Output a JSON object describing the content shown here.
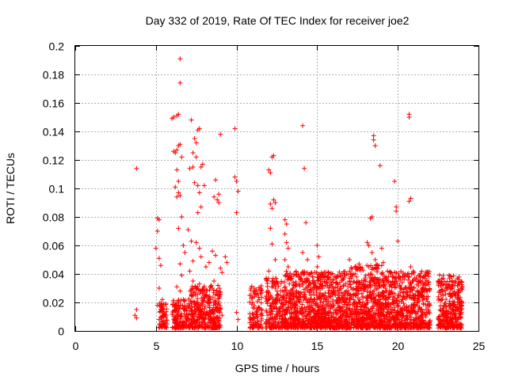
{
  "chart_data": {
    "type": "scatter",
    "title": "Day 332 of 2019, Rate Of TEC Index for receiver joe2",
    "xlabel": "GPS time / hours",
    "ylabel": "ROTI / TECUs",
    "xlim": [
      0,
      25
    ],
    "ylim": [
      0,
      0.2
    ],
    "xticks": [
      0,
      5,
      10,
      15,
      20,
      25
    ],
    "yticks": [
      0,
      0.02,
      0.04,
      0.06,
      0.08,
      0.1,
      0.12,
      0.14,
      0.16,
      0.18,
      0.2
    ],
    "xtick_labels": [
      "0",
      "5",
      "10",
      "15",
      "20",
      "25"
    ],
    "ytick_labels": [
      "0",
      "0.02",
      "0.04",
      "0.06",
      "0.08",
      "0.1",
      "0.12",
      "0.14",
      "0.16",
      "0.18",
      "0.2"
    ],
    "grid": true,
    "marker": "+",
    "color": "#ff0000",
    "series": [
      {
        "name": "ROTI",
        "points": [
          [
            3.8,
            0.114
          ],
          [
            3.8,
            0.015
          ],
          [
            3.8,
            0.009
          ],
          [
            3.7,
            0.011
          ],
          [
            5.1,
            0.079
          ],
          [
            5.2,
            0.078
          ],
          [
            5.1,
            0.07
          ],
          [
            5.0,
            0.058
          ],
          [
            5.2,
            0.051
          ],
          [
            5.3,
            0.046
          ],
          [
            5.2,
            0.03
          ],
          [
            5.4,
            0.022
          ],
          [
            5.1,
            0.018
          ],
          [
            5.3,
            0.015
          ],
          [
            5.5,
            0.012
          ],
          [
            5.2,
            0.008
          ],
          [
            5.4,
            0.004
          ],
          [
            5.6,
            0.006
          ],
          [
            6.0,
            0.149
          ],
          [
            6.1,
            0.15
          ],
          [
            6.2,
            0.125
          ],
          [
            6.1,
            0.126
          ],
          [
            6.3,
            0.127
          ],
          [
            6.4,
            0.13
          ],
          [
            6.5,
            0.131
          ],
          [
            6.3,
            0.151
          ],
          [
            6.4,
            0.152
          ],
          [
            6.5,
            0.191
          ],
          [
            6.5,
            0.174
          ],
          [
            6.6,
            0.122
          ],
          [
            6.3,
            0.113
          ],
          [
            6.4,
            0.105
          ],
          [
            6.2,
            0.101
          ],
          [
            6.4,
            0.097
          ],
          [
            6.5,
            0.095
          ],
          [
            6.3,
            0.094
          ],
          [
            6.6,
            0.08
          ],
          [
            6.4,
            0.072
          ],
          [
            6.7,
            0.06
          ],
          [
            6.8,
            0.055
          ],
          [
            6.5,
            0.047
          ],
          [
            6.6,
            0.039
          ],
          [
            6.3,
            0.031
          ],
          [
            6.5,
            0.028
          ],
          [
            6.7,
            0.022
          ],
          [
            6.4,
            0.018
          ],
          [
            6.6,
            0.012
          ],
          [
            6.2,
            0.008
          ],
          [
            6.5,
            0.006
          ],
          [
            6.8,
            0.004
          ],
          [
            6.1,
            0.01
          ],
          [
            6.9,
            0.014
          ],
          [
            7.2,
            0.148
          ],
          [
            7.4,
            0.135
          ],
          [
            7.5,
            0.132
          ],
          [
            7.6,
            0.141
          ],
          [
            7.7,
            0.142
          ],
          [
            7.3,
            0.125
          ],
          [
            7.5,
            0.122
          ],
          [
            7.1,
            0.114
          ],
          [
            7.3,
            0.115
          ],
          [
            7.4,
            0.104
          ],
          [
            7.6,
            0.102
          ],
          [
            7.7,
            0.097
          ],
          [
            7.8,
            0.087
          ],
          [
            7.6,
            0.083
          ],
          [
            7.9,
            0.117
          ],
          [
            7.8,
            0.115
          ],
          [
            8.0,
            0.102
          ],
          [
            7.0,
            0.071
          ],
          [
            7.2,
            0.063
          ],
          [
            7.3,
            0.049
          ],
          [
            7.5,
            0.062
          ],
          [
            7.7,
            0.058
          ],
          [
            7.8,
            0.052
          ],
          [
            7.1,
            0.042
          ],
          [
            7.3,
            0.035
          ],
          [
            7.5,
            0.03
          ],
          [
            7.7,
            0.033
          ],
          [
            7.9,
            0.028
          ],
          [
            7.2,
            0.025
          ],
          [
            7.4,
            0.02
          ],
          [
            7.6,
            0.017
          ],
          [
            7.8,
            0.015
          ],
          [
            7.1,
            0.012
          ],
          [
            7.3,
            0.009
          ],
          [
            7.5,
            0.006
          ],
          [
            7.7,
            0.004
          ],
          [
            7.9,
            0.003
          ],
          [
            8.1,
            0.025
          ],
          [
            8.2,
            0.02
          ],
          [
            8.3,
            0.018
          ],
          [
            8.4,
            0.022
          ],
          [
            8.5,
            0.03
          ],
          [
            8.6,
            0.035
          ],
          [
            8.2,
            0.012
          ],
          [
            8.4,
            0.01
          ],
          [
            8.6,
            0.014
          ],
          [
            8.8,
            0.016
          ],
          [
            8.3,
            0.006
          ],
          [
            8.5,
            0.004
          ],
          [
            8.1,
            0.045
          ],
          [
            8.3,
            0.048
          ],
          [
            8.5,
            0.056
          ],
          [
            8.7,
            0.053
          ],
          [
            8.8,
            0.092
          ],
          [
            8.6,
            0.094
          ],
          [
            8.9,
            0.096
          ],
          [
            8.7,
            0.106
          ],
          [
            8.9,
            0.09
          ],
          [
            9.0,
            0.138
          ],
          [
            9.1,
            0.011
          ],
          [
            8.9,
            0.019
          ],
          [
            8.8,
            0.009
          ],
          [
            9.0,
            0.044
          ],
          [
            9.1,
            0.041
          ],
          [
            9.3,
            0.052
          ],
          [
            9.4,
            0.048
          ],
          [
            9.9,
            0.142
          ],
          [
            9.9,
            0.108
          ],
          [
            10.0,
            0.105
          ],
          [
            10.1,
            0.098
          ],
          [
            10.0,
            0.083
          ],
          [
            10.0,
            0.013
          ],
          [
            10.1,
            0.008
          ],
          [
            10.9,
            0.03
          ],
          [
            10.9,
            0.025
          ],
          [
            11.0,
            0.02
          ],
          [
            11.1,
            0.016
          ],
          [
            11.0,
            0.012
          ],
          [
            10.9,
            0.008
          ],
          [
            11.1,
            0.006
          ],
          [
            11.2,
            0.004
          ],
          [
            11.3,
            0.014
          ],
          [
            11.4,
            0.022
          ],
          [
            11.5,
            0.028
          ],
          [
            11.2,
            0.01
          ],
          [
            12.0,
            0.113
          ],
          [
            12.1,
            0.111
          ],
          [
            12.2,
            0.122
          ],
          [
            12.3,
            0.123
          ],
          [
            12.1,
            0.089
          ],
          [
            12.2,
            0.086
          ],
          [
            12.3,
            0.092
          ],
          [
            12.4,
            0.09
          ],
          [
            12.1,
            0.072
          ],
          [
            12.2,
            0.061
          ],
          [
            12.4,
            0.05
          ],
          [
            12.0,
            0.042
          ],
          [
            12.2,
            0.035
          ],
          [
            12.4,
            0.03
          ],
          [
            12.1,
            0.025
          ],
          [
            12.3,
            0.02
          ],
          [
            12.5,
            0.016
          ],
          [
            12.2,
            0.012
          ],
          [
            12.4,
            0.008
          ],
          [
            12.6,
            0.005
          ],
          [
            12.8,
            0.01
          ],
          [
            12.9,
            0.018
          ],
          [
            12.7,
            0.025
          ],
          [
            13.0,
            0.078
          ],
          [
            13.1,
            0.075
          ],
          [
            13.0,
            0.068
          ],
          [
            13.1,
            0.062
          ],
          [
            13.2,
            0.058
          ],
          [
            13.0,
            0.05
          ],
          [
            13.2,
            0.045
          ],
          [
            13.4,
            0.038
          ],
          [
            13.5,
            0.03
          ],
          [
            13.3,
            0.025
          ],
          [
            13.6,
            0.02
          ],
          [
            13.4,
            0.015
          ],
          [
            13.7,
            0.012
          ],
          [
            13.5,
            0.008
          ],
          [
            13.8,
            0.005
          ],
          [
            13.9,
            0.022
          ],
          [
            13.7,
            0.028
          ],
          [
            14.1,
            0.144
          ],
          [
            14.2,
            0.114
          ],
          [
            14.3,
            0.076
          ],
          [
            14.1,
            0.055
          ],
          [
            14.4,
            0.05
          ],
          [
            14.2,
            0.04
          ],
          [
            14.5,
            0.035
          ],
          [
            14.3,
            0.03
          ],
          [
            14.6,
            0.025
          ],
          [
            14.4,
            0.02
          ],
          [
            14.7,
            0.016
          ],
          [
            14.5,
            0.012
          ],
          [
            14.8,
            0.008
          ],
          [
            14.6,
            0.005
          ],
          [
            14.9,
            0.018
          ],
          [
            15.0,
            0.06
          ],
          [
            15.1,
            0.052
          ],
          [
            15.0,
            0.045
          ],
          [
            15.2,
            0.038
          ],
          [
            15.1,
            0.03
          ],
          [
            15.3,
            0.025
          ],
          [
            15.2,
            0.02
          ],
          [
            15.4,
            0.015
          ],
          [
            15.3,
            0.01
          ],
          [
            15.5,
            0.006
          ],
          [
            15.6,
            0.022
          ],
          [
            15.8,
            0.018
          ],
          [
            15.9,
            0.012
          ],
          [
            16.0,
            0.03
          ],
          [
            16.1,
            0.008
          ],
          [
            16.2,
            0.015
          ],
          [
            16.3,
            0.025
          ],
          [
            16.4,
            0.034
          ],
          [
            16.5,
            0.02
          ],
          [
            16.6,
            0.011
          ],
          [
            16.7,
            0.006
          ],
          [
            16.8,
            0.028
          ],
          [
            16.9,
            0.018
          ],
          [
            17.0,
            0.05
          ],
          [
            17.1,
            0.04
          ],
          [
            17.0,
            0.035
          ],
          [
            17.2,
            0.025
          ],
          [
            17.3,
            0.015
          ],
          [
            17.4,
            0.01
          ],
          [
            17.5,
            0.005
          ],
          [
            17.6,
            0.02
          ],
          [
            17.7,
            0.03
          ],
          [
            17.8,
            0.012
          ],
          [
            17.9,
            0.008
          ],
          [
            18.0,
            0.018
          ],
          [
            18.1,
            0.062
          ],
          [
            18.2,
            0.06
          ],
          [
            18.3,
            0.079
          ],
          [
            18.4,
            0.08
          ],
          [
            18.5,
            0.137
          ],
          [
            18.5,
            0.134
          ],
          [
            18.6,
            0.13
          ],
          [
            18.4,
            0.055
          ],
          [
            18.6,
            0.05
          ],
          [
            18.2,
            0.045
          ],
          [
            18.3,
            0.04
          ],
          [
            18.5,
            0.035
          ],
          [
            18.7,
            0.03
          ],
          [
            18.4,
            0.025
          ],
          [
            18.6,
            0.02
          ],
          [
            18.8,
            0.015
          ],
          [
            18.3,
            0.01
          ],
          [
            18.5,
            0.006
          ],
          [
            18.7,
            0.004
          ],
          [
            18.9,
            0.116
          ],
          [
            19.0,
            0.058
          ],
          [
            19.1,
            0.048
          ],
          [
            19.2,
            0.038
          ],
          [
            19.3,
            0.028
          ],
          [
            19.4,
            0.02
          ],
          [
            19.5,
            0.012
          ],
          [
            19.6,
            0.008
          ],
          [
            19.7,
            0.004
          ],
          [
            19.8,
            0.105
          ],
          [
            19.9,
            0.087
          ],
          [
            19.9,
            0.084
          ],
          [
            20.0,
            0.063
          ],
          [
            20.1,
            0.038
          ],
          [
            20.2,
            0.03
          ],
          [
            20.3,
            0.022
          ],
          [
            20.4,
            0.015
          ],
          [
            20.5,
            0.01
          ],
          [
            20.6,
            0.005
          ],
          [
            20.7,
            0.152
          ],
          [
            20.7,
            0.15
          ],
          [
            20.8,
            0.093
          ],
          [
            20.7,
            0.091
          ],
          [
            20.8,
            0.045
          ],
          [
            20.6,
            0.04
          ],
          [
            20.9,
            0.035
          ],
          [
            21.0,
            0.03
          ],
          [
            21.1,
            0.025
          ],
          [
            21.2,
            0.02
          ],
          [
            21.3,
            0.015
          ],
          [
            21.4,
            0.01
          ],
          [
            21.5,
            0.006
          ],
          [
            21.6,
            0.038
          ],
          [
            21.7,
            0.032
          ],
          [
            21.8,
            0.024
          ],
          [
            21.9,
            0.014
          ],
          [
            22.5,
            0.035
          ],
          [
            22.6,
            0.028
          ],
          [
            22.7,
            0.022
          ],
          [
            22.8,
            0.016
          ],
          [
            22.9,
            0.01
          ],
          [
            23.0,
            0.006
          ],
          [
            23.1,
            0.03
          ],
          [
            23.2,
            0.037
          ],
          [
            23.3,
            0.025
          ],
          [
            23.4,
            0.018
          ],
          [
            23.5,
            0.012
          ],
          [
            23.6,
            0.008
          ],
          [
            23.7,
            0.032
          ],
          [
            23.8,
            0.022
          ],
          [
            23.9,
            0.015
          ],
          [
            23.9,
            0.005
          ]
        ]
      }
    ]
  }
}
